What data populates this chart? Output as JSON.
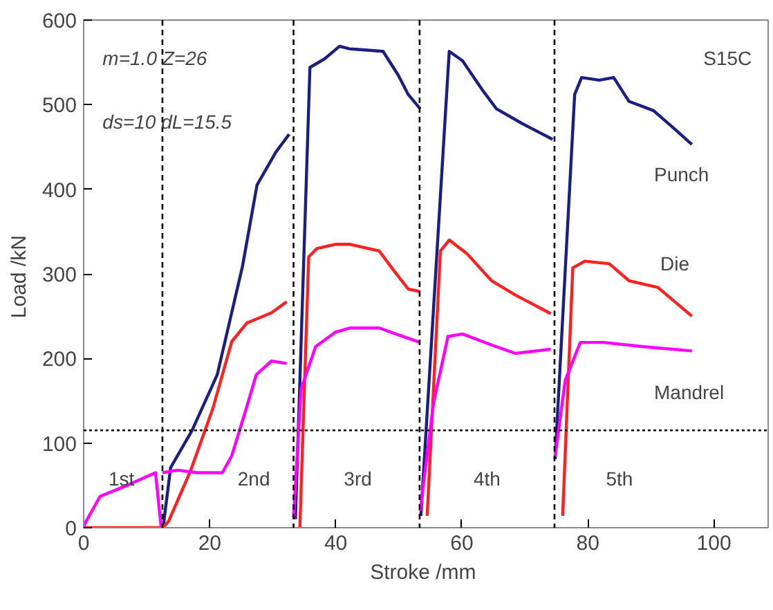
{
  "chart_data": {
    "type": "line",
    "xlabel": "Stroke  /mm",
    "ylabel": "Load  /kN",
    "xlim": [
      0,
      108.6
    ],
    "ylim": [
      0,
      600
    ],
    "xticks": [
      0,
      20,
      40,
      60,
      80,
      100
    ],
    "yticks": [
      0,
      100,
      200,
      300,
      400,
      500,
      600
    ],
    "grid": false,
    "marker": "none",
    "line_style": "solid",
    "series": [
      {
        "color": "#1a1f80",
        "x": [
          12.6,
          13.8,
          17.2,
          21.2,
          25.2,
          27.5,
          30.5,
          32.6
        ],
        "values": [
          0,
          71,
          115,
          181,
          309,
          405,
          444,
          465
        ]
      },
      {
        "color": "#1a1f80",
        "x": [
          33.6,
          35.9,
          38.2,
          40.6,
          42.2,
          47.5,
          49.9,
          51.5,
          53.4
        ],
        "values": [
          10,
          544,
          554,
          569,
          566,
          563,
          535,
          512,
          495
        ]
      },
      {
        "color": "#1a1f80",
        "x": [
          53.5,
          58,
          60.1,
          63.2,
          65.5,
          69.5,
          74.4
        ],
        "values": [
          14,
          563,
          552,
          518,
          495,
          478,
          459
        ]
      },
      {
        "name": "Punch",
        "color": "#1a1f80",
        "x": [
          74.8,
          77.9,
          79,
          81.8,
          84.1,
          86.5,
          90.4,
          93.5,
          96.5
        ],
        "values": [
          81,
          512,
          532,
          529,
          532,
          504,
          493,
          473,
          453
        ]
      },
      {
        "color": "#ff2020",
        "x": [
          0,
          12.6,
          13.5,
          17,
          20.5,
          23.5,
          25.9,
          29.8,
          32.2
        ],
        "values": [
          0,
          0,
          8,
          68,
          141,
          220,
          242,
          254,
          267
        ]
      },
      {
        "color": "#ff2020",
        "x": [
          34.3,
          35.7,
          37,
          40,
          42.2,
          46.9,
          49.2,
          51.5,
          53.4
        ],
        "values": [
          0,
          320,
          330,
          335,
          335,
          327,
          304,
          282,
          279
        ]
      },
      {
        "color": "#ff2020",
        "x": [
          54.5,
          56.6,
          58,
          60.8,
          64.7,
          68.5,
          74.1
        ],
        "values": [
          14,
          327,
          340,
          324,
          292,
          275,
          253
        ]
      },
      {
        "name": "Die",
        "color": "#ff2020",
        "x": [
          76,
          77.6,
          79.5,
          83.4,
          86.5,
          91.1,
          96.5
        ],
        "values": [
          14,
          307,
          315,
          312,
          292,
          284,
          250
        ]
      },
      {
        "color": "#ff00ff",
        "x": [
          0,
          0.2,
          2.6,
          7.2,
          11.4,
          12.3
        ],
        "values": [
          0,
          5,
          37,
          51,
          65,
          0
        ]
      },
      {
        "color": "#ff00ff",
        "x": [
          12.5,
          15,
          18,
          22,
          23.5,
          25.8,
          27.4,
          29.8,
          32.2
        ],
        "values": [
          65,
          68,
          65,
          65,
          85,
          141,
          181,
          197,
          194
        ]
      },
      {
        "color": "#ff00ff",
        "x": [
          33.3,
          34.5,
          36.8,
          39.9,
          42.2,
          46.9,
          49.9,
          53.4
        ],
        "values": [
          12,
          164,
          214,
          231,
          236,
          236,
          228,
          219
        ]
      },
      {
        "color": "#ff00ff",
        "x": [
          53.4,
          55.5,
          57.8,
          60.1,
          64.7,
          68.5,
          74.1
        ],
        "values": [
          20,
          147,
          226,
          229,
          216,
          206,
          211
        ]
      },
      {
        "name": "Mandrel",
        "color": "#ff00ff",
        "x": [
          74.8,
          76.4,
          78.8,
          82.5,
          88.8,
          96.5
        ],
        "values": [
          84,
          174,
          219,
          219,
          214,
          209
        ]
      }
    ],
    "ref_lines": [
      {
        "axis": "y",
        "value": 115,
        "line_style": "dotted",
        "color": "#000000"
      },
      {
        "axis": "x",
        "value": 12.5,
        "line_style": "dashed",
        "color": "#000000"
      },
      {
        "axis": "x",
        "value": 33.3,
        "line_style": "dashed",
        "color": "#000000"
      },
      {
        "axis": "x",
        "value": 53.3,
        "line_style": "dashed",
        "color": "#000000"
      },
      {
        "axis": "x",
        "value": 74.7,
        "line_style": "dashed",
        "color": "#000000"
      }
    ],
    "annotations": [
      "m=1.0 Z=26",
      "ds=10 dL=15.5",
      "S15C",
      "1st",
      "2nd",
      "3rd",
      "4th",
      "5th"
    ]
  }
}
